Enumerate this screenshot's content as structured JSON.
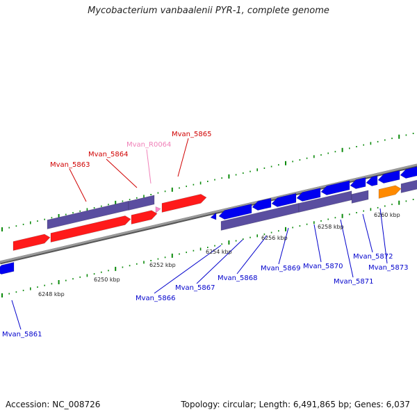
{
  "title": "Mycobacterium vanbaalenii PYR-1, complete genome",
  "footer": {
    "accession": "Accession: NC_008726",
    "summary": "Topology: circular; Length: 6,491,865 bp; Genes: 6,037"
  },
  "colors": {
    "forward_gene": "#ff1a1a",
    "forward_cds": "#0000f0",
    "rna": "#ff88cc",
    "gene_bar": "#5a4ea0",
    "other": "#ff8a00",
    "tick": "#0a8a0a",
    "backbone": "#8c8c8c",
    "label_red": "#d00000",
    "label_pink": "#f080b8",
    "label_blue": "#0000cc"
  },
  "scale_labels": [
    {
      "text": "6248 kbp",
      "kbp": 6248
    },
    {
      "text": "6250 kbp",
      "kbp": 6250
    },
    {
      "text": "6252 kbp",
      "kbp": 6252
    },
    {
      "text": "6254 kbp",
      "kbp": 6254
    },
    {
      "text": "6256 kbp",
      "kbp": 6256
    },
    {
      "text": "6258 kbp",
      "kbp": 6258
    },
    {
      "text": "6260 kbp",
      "kbp": 6260
    }
  ],
  "gene_labels": [
    {
      "text": "Mvan_5861",
      "color": "label_blue"
    },
    {
      "text": "Mvan_5863",
      "color": "label_red"
    },
    {
      "text": "Mvan_5864",
      "color": "label_red"
    },
    {
      "text": "Mvan_R0064",
      "color": "label_pink"
    },
    {
      "text": "Mvan_5865",
      "color": "label_red"
    },
    {
      "text": "Mvan_5866",
      "color": "label_blue"
    },
    {
      "text": "Mvan_5867",
      "color": "label_blue"
    },
    {
      "text": "Mvan_5868",
      "color": "label_blue"
    },
    {
      "text": "Mvan_5869",
      "color": "label_blue"
    },
    {
      "text": "Mvan_5870",
      "color": "label_blue"
    },
    {
      "text": "Mvan_5871",
      "color": "label_blue"
    },
    {
      "text": "Mvan_5872",
      "color": "label_blue"
    },
    {
      "text": "Mvan_5873",
      "color": "label_blue"
    }
  ]
}
